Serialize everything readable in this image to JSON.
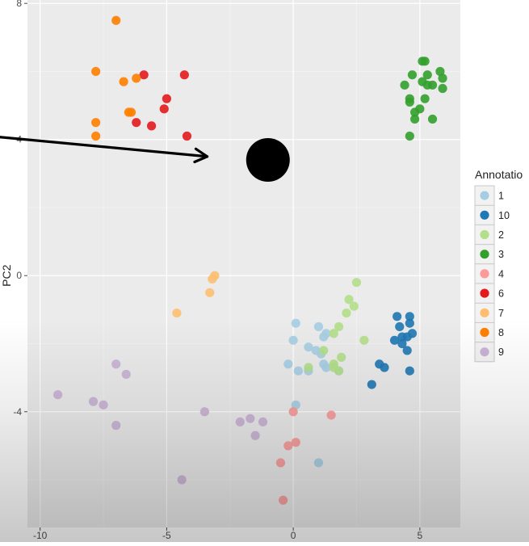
{
  "chart_data": {
    "type": "scatter",
    "xlabel": "",
    "ylabel": "PC2",
    "xlim": [
      -10.5,
      6.6
    ],
    "ylim": [
      -7.4,
      8.1
    ],
    "x_ticks": [
      -10,
      -5,
      0,
      5
    ],
    "y_ticks": [
      8,
      4,
      0,
      -4
    ],
    "x_tick_labels": [
      "-10",
      "-5",
      "0",
      "5"
    ],
    "y_tick_labels": [
      "8",
      "4",
      "0",
      "-4"
    ],
    "grid": true,
    "legend_title": "Annotatio",
    "legend_position": "right",
    "series": [
      {
        "name": "1",
        "color": "#a6cee3",
        "points": [
          [
            0.1,
            -1.4
          ],
          [
            1.0,
            -1.5
          ],
          [
            1.3,
            -1.7
          ],
          [
            1.2,
            -1.8
          ],
          [
            0.0,
            -1.9
          ],
          [
            0.6,
            -2.1
          ],
          [
            0.9,
            -2.2
          ],
          [
            1.1,
            -2.3
          ],
          [
            1.2,
            -2.6
          ],
          [
            0.6,
            -2.8
          ],
          [
            1.8,
            -2.8
          ],
          [
            0.2,
            -2.8
          ],
          [
            1.3,
            -2.7
          ],
          [
            -0.2,
            -2.6
          ],
          [
            0.1,
            -3.8
          ],
          [
            1.0,
            -5.5
          ]
        ]
      },
      {
        "name": "10",
        "color": "#1f78b4",
        "points": [
          [
            4.1,
            -1.2
          ],
          [
            4.6,
            -1.2
          ],
          [
            4.6,
            -1.4
          ],
          [
            4.2,
            -1.5
          ],
          [
            4.3,
            -1.8
          ],
          [
            4.7,
            -1.7
          ],
          [
            4.5,
            -1.8
          ],
          [
            4.0,
            -1.9
          ],
          [
            4.3,
            -2.0
          ],
          [
            4.5,
            -2.2
          ],
          [
            3.4,
            -2.6
          ],
          [
            3.6,
            -2.7
          ],
          [
            4.6,
            -2.8
          ],
          [
            3.1,
            -3.2
          ]
        ]
      },
      {
        "name": "2",
        "color": "#b2df8a",
        "points": [
          [
            2.5,
            -0.2
          ],
          [
            2.2,
            -0.7
          ],
          [
            2.4,
            -0.9
          ],
          [
            2.1,
            -1.1
          ],
          [
            1.8,
            -1.5
          ],
          [
            1.6,
            -1.7
          ],
          [
            2.8,
            -1.9
          ],
          [
            1.2,
            -2.2
          ],
          [
            1.9,
            -2.4
          ],
          [
            1.6,
            -2.6
          ],
          [
            0.6,
            -2.7
          ],
          [
            1.8,
            -2.8
          ],
          [
            1.6,
            -2.7
          ]
        ]
      },
      {
        "name": "3",
        "color": "#33a02c",
        "points": [
          [
            5.1,
            6.3
          ],
          [
            5.2,
            6.3
          ],
          [
            5.8,
            6.0
          ],
          [
            5.3,
            5.9
          ],
          [
            4.7,
            5.9
          ],
          [
            5.9,
            5.8
          ],
          [
            4.4,
            5.6
          ],
          [
            5.1,
            5.7
          ],
          [
            5.3,
            5.6
          ],
          [
            5.9,
            5.5
          ],
          [
            5.5,
            5.6
          ],
          [
            4.6,
            5.1
          ],
          [
            5.2,
            5.2
          ],
          [
            5.0,
            4.9
          ],
          [
            4.8,
            4.8
          ],
          [
            4.6,
            5.2
          ],
          [
            5.5,
            4.6
          ],
          [
            4.8,
            4.6
          ],
          [
            4.6,
            4.1
          ]
        ]
      },
      {
        "name": "4",
        "color": "#fb9a99",
        "points": [
          [
            0.0,
            -4.0
          ],
          [
            1.5,
            -4.1
          ],
          [
            0.1,
            -4.9
          ],
          [
            -0.2,
            -5.0
          ],
          [
            -0.5,
            -5.5
          ],
          [
            -0.4,
            -6.6
          ]
        ]
      },
      {
        "name": "6",
        "color": "#e31a1c",
        "points": [
          [
            -5.9,
            5.9
          ],
          [
            -4.3,
            5.9
          ],
          [
            -5.0,
            5.2
          ],
          [
            -5.1,
            4.9
          ],
          [
            -6.2,
            4.5
          ],
          [
            -5.6,
            4.4
          ],
          [
            -4.2,
            4.1
          ]
        ]
      },
      {
        "name": "7",
        "color": "#fdbf6f",
        "points": [
          [
            -3.1,
            0.0
          ],
          [
            -3.2,
            -0.1
          ],
          [
            -3.3,
            -0.5
          ],
          [
            -4.6,
            -1.1
          ]
        ]
      },
      {
        "name": "8",
        "color": "#ff7f00",
        "points": [
          [
            -7.0,
            7.5
          ],
          [
            -7.8,
            6.0
          ],
          [
            -6.7,
            5.7
          ],
          [
            -6.2,
            5.8
          ],
          [
            -6.4,
            4.8
          ],
          [
            -6.5,
            4.8
          ],
          [
            -7.8,
            4.5
          ],
          [
            -7.8,
            4.1
          ]
        ]
      },
      {
        "name": "9",
        "color": "#cab2d6",
        "points": [
          [
            -7.0,
            -2.6
          ],
          [
            -6.6,
            -2.9
          ],
          [
            -9.3,
            -3.5
          ],
          [
            -7.9,
            -3.7
          ],
          [
            -7.5,
            -3.8
          ],
          [
            -3.5,
            -4.0
          ],
          [
            -7.0,
            -4.4
          ],
          [
            -1.7,
            -4.2
          ],
          [
            -2.1,
            -4.3
          ],
          [
            -1.2,
            -4.3
          ],
          [
            -1.5,
            -4.7
          ],
          [
            -4.4,
            -6.0
          ]
        ]
      }
    ],
    "annotations": [
      {
        "kind": "arrow",
        "from": [
          -12.0,
          4.1
        ],
        "to": [
          -3.4,
          3.5
        ]
      },
      {
        "kind": "marker",
        "shape": "circle",
        "color": "#000000",
        "at": [
          -1.0,
          3.4
        ]
      }
    ]
  }
}
